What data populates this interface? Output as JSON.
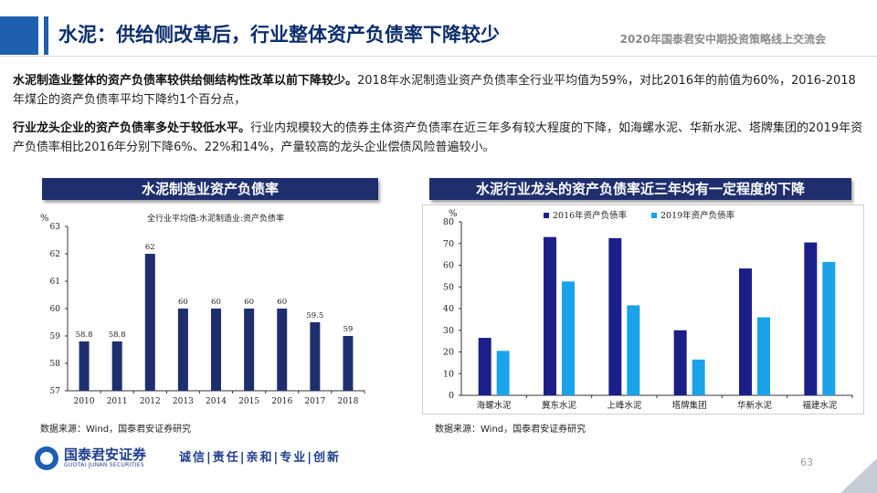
{
  "header": {
    "title": "水泥：供给侧改革后，行业整体资产负债率下降较少",
    "event": "2020年国泰君安中期投资策略线上交流会"
  },
  "body": {
    "p1_bold": "水泥制造业整体的资产负债率较供给侧结构性改革以前下降较少。",
    "p1_rest": "2018年水泥制造业资产负债率全行业平均值为59%，对比2016年的前值为60%，2016-2018年煤企的资产负债率平均下降约1个百分点，",
    "p2_bold": "行业龙头企业的资产负债率多处于较低水平。",
    "p2_rest": "行业内规模较大的债券主体资产负债率在近三年多有较大程度的下降，如海螺水泥、华新水泥、塔牌集团的2019年资产负债率相比2016年分别下降6%、22%和14%，产量较高的龙头企业偿债风险普遍较小。"
  },
  "panels": {
    "left_title": "水泥制造业资产负债率",
    "right_title": "水泥行业龙头的资产负债率近三年均有一定程度的下降",
    "left_source": "数据来源：Wind，国泰君安证券研究",
    "right_source": "数据来源：Wind，国泰君安证券研究"
  },
  "chart_data": [
    {
      "type": "bar",
      "title": "全行业平均值:水泥制造业:资产负债率",
      "ylabel": "%",
      "categories": [
        "2010",
        "2011",
        "2012",
        "2013",
        "2014",
        "2015",
        "2016",
        "2017",
        "2018"
      ],
      "values": [
        58.8,
        58.8,
        62,
        60,
        60,
        60,
        60,
        59.5,
        59
      ],
      "data_labels": [
        "58.8",
        "58.8",
        "62",
        "60",
        "60",
        "60",
        "60",
        "59.5",
        "59"
      ],
      "ylim": [
        57,
        63
      ],
      "yticks": [
        57,
        58,
        59,
        60,
        61,
        62,
        63
      ],
      "color": "#1f2f6e",
      "grid": false
    },
    {
      "type": "bar",
      "ylabel": "%",
      "categories": [
        "海螺水泥",
        "冀东水泥",
        "上峰水泥",
        "塔牌集团",
        "华新水泥",
        "福建水泥"
      ],
      "series": [
        {
          "name": "2016年资产负债率",
          "values": [
            26.5,
            73,
            72.5,
            30,
            58.5,
            70.5
          ],
          "color": "#1c1f8a"
        },
        {
          "name": "2019年资产负债率",
          "values": [
            20.5,
            52.5,
            41.5,
            16.5,
            36,
            61.5
          ],
          "color": "#1aa3e8"
        }
      ],
      "ylim": [
        0,
        80
      ],
      "yticks": [
        0,
        10,
        20,
        30,
        40,
        50,
        60,
        70,
        80
      ],
      "legend": "top",
      "grid": false
    }
  ],
  "footer": {
    "logo_cn": "国泰君安证券",
    "logo_en": "GUOTAI JUNAN SECURITIES",
    "motto": "诚信|责任|亲和|专业|创新",
    "page": "63"
  }
}
